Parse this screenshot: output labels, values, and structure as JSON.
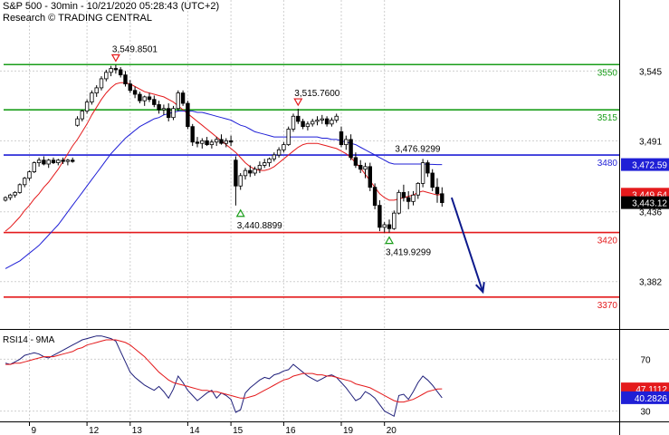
{
  "header": {
    "line1": "S&P 500 - 30min - 10/21/2020 05:28:43 (UTC+2)",
    "line2": "Research © TRADING CENTRAL"
  },
  "colors": {
    "up": "#000000",
    "down": "#000000",
    "ma_fast": "#e41a1c",
    "ma_slow": "#1f1fd6",
    "resistance": "#1a9e1a",
    "pivot": "#1f1fd6",
    "support": "#e41a1c",
    "arrow": "#0d1a8c",
    "rsi": "#1f1f7a",
    "rsi_ma": "#e41a1c"
  },
  "chart_data": [
    {
      "type": "candlestick",
      "title": "S&P 500 - 30min - 10/21/2020 05:28:43 (UTC+2)",
      "x_ticks": [
        "9",
        "12",
        "13",
        "14",
        "15",
        "16",
        "19",
        "20"
      ],
      "y_ticks": [
        3382,
        3436,
        3491,
        3545
      ],
      "y_range": [
        3346,
        3600
      ],
      "grid": true,
      "levels": [
        {
          "value": 3550,
          "label": "3550",
          "role": "resistance"
        },
        {
          "value": 3515,
          "label": "3515",
          "role": "resistance"
        },
        {
          "value": 3480,
          "label": "3480",
          "role": "pivot"
        },
        {
          "value": 3420,
          "label": "3420",
          "role": "support"
        },
        {
          "value": 3370,
          "label": "3370",
          "role": "support"
        }
      ],
      "annotations": [
        {
          "text": "3,549.8501",
          "value": 3549.8501,
          "bar": 23,
          "marker": "down"
        },
        {
          "text": "3,515.7600",
          "value": 3515.76,
          "bar": 61,
          "marker": "down"
        },
        {
          "text": "3,476.9299",
          "value": 3476.9299,
          "bar": 88,
          "marker": "none"
        },
        {
          "text": "3,440.8899",
          "value": 3440.8899,
          "bar": 49,
          "marker": "up"
        },
        {
          "text": "3,419.9299",
          "value": 3419.9299,
          "bar": 80,
          "marker": "up"
        }
      ],
      "badges": [
        {
          "text": "3,472.59",
          "value": 3472.59,
          "series": "ma_slow"
        },
        {
          "text": "3,449.64",
          "value": 3449.64,
          "series": "ma_fast"
        },
        {
          "text": "3,443.12",
          "value": 3443.12,
          "series": "price"
        }
      ],
      "projection": {
        "from_value": 3447,
        "to_value": 3374
      },
      "series": [
        {
          "name": "ma_fast",
          "values": [
            3421,
            3424,
            3428,
            3432,
            3437,
            3441,
            3446,
            3450,
            3455,
            3459,
            3464,
            3469,
            3475,
            3481,
            3487,
            3492,
            3498,
            3504,
            3511,
            3517,
            3523,
            3528,
            3532,
            3535,
            3536,
            3536,
            3535,
            3533,
            3531,
            3529,
            3528,
            3527,
            3526,
            3525,
            3523,
            3521,
            3518,
            3515,
            3512,
            3509,
            3506,
            3503,
            3500,
            3497,
            3494,
            3491,
            3488,
            3485,
            3482,
            3478,
            3474,
            3471,
            3469,
            3468,
            3468,
            3469,
            3471,
            3474,
            3477,
            3480,
            3483,
            3486,
            3488,
            3489,
            3489,
            3489,
            3488,
            3487,
            3486,
            3485,
            3483,
            3481,
            3478,
            3474,
            3470,
            3465,
            3460,
            3455,
            3450,
            3447,
            3445,
            3445,
            3446,
            3447,
            3448,
            3449,
            3451,
            3452,
            3451,
            3450,
            3449,
            3449.64
          ]
        },
        {
          "name": "ma_slow",
          "values": [
            3392,
            3394,
            3396,
            3398,
            3401,
            3404,
            3407,
            3410,
            3414,
            3418,
            3422,
            3426,
            3431,
            3436,
            3441,
            3446,
            3451,
            3456,
            3461,
            3466,
            3471,
            3476,
            3481,
            3485,
            3489,
            3493,
            3496,
            3499,
            3502,
            3504,
            3506,
            3508,
            3509,
            3511,
            3512,
            3513,
            3514,
            3514,
            3514,
            3514,
            3513,
            3513,
            3512,
            3511,
            3510,
            3509,
            3508,
            3507,
            3505,
            3503,
            3502,
            3500,
            3498,
            3497,
            3496,
            3495,
            3494,
            3494,
            3494,
            3494,
            3494,
            3494,
            3494,
            3494,
            3494,
            3494,
            3493,
            3493,
            3492,
            3492,
            3491,
            3490,
            3489,
            3488,
            3486,
            3484,
            3482,
            3480,
            3478,
            3476,
            3474,
            3473,
            3473,
            3473,
            3473,
            3473,
            3473,
            3473,
            3472.8,
            3472.7,
            3472.6,
            3472.59
          ]
        }
      ],
      "candles": [
        [
          3445,
          3448,
          3444,
          3447
        ],
        [
          3447,
          3450,
          3445,
          3449
        ],
        [
          3449,
          3452,
          3447,
          3451
        ],
        [
          3451,
          3458,
          3450,
          3457
        ],
        [
          3457,
          3463,
          3455,
          3462
        ],
        [
          3462,
          3468,
          3460,
          3467
        ],
        [
          3467,
          3475,
          3466,
          3474
        ],
        [
          3474,
          3478,
          3471,
          3476
        ],
        [
          3476,
          3479,
          3472,
          3473
        ],
        [
          3473,
          3477,
          3470,
          3476
        ],
        [
          3476,
          3478,
          3473,
          3474
        ],
        [
          3474,
          3477,
          3472,
          3476
        ],
        [
          3476,
          3478,
          3473,
          3475
        ],
        [
          3475,
          3477,
          3472,
          3476
        ],
        [
          3476,
          3478,
          3474,
          3475
        ],
        [
          3503,
          3510,
          3502,
          3508
        ],
        [
          3508,
          3515,
          3506,
          3514
        ],
        [
          3514,
          3523,
          3512,
          3521
        ],
        [
          3521,
          3530,
          3519,
          3528
        ],
        [
          3528,
          3534,
          3525,
          3532
        ],
        [
          3532,
          3541,
          3530,
          3539
        ],
        [
          3539,
          3546,
          3537,
          3544
        ],
        [
          3544,
          3549,
          3541,
          3547
        ],
        [
          3547,
          3549.85,
          3543,
          3546
        ],
        [
          3546,
          3548,
          3540,
          3542
        ],
        [
          3542,
          3545,
          3533,
          3535
        ],
        [
          3535,
          3538,
          3528,
          3530
        ],
        [
          3530,
          3533,
          3524,
          3527
        ],
        [
          3527,
          3529,
          3520,
          3522
        ],
        [
          3522,
          3526,
          3518,
          3525
        ],
        [
          3525,
          3528,
          3521,
          3523
        ],
        [
          3523,
          3526,
          3517,
          3519
        ],
        [
          3519,
          3522,
          3512,
          3515
        ],
        [
          3515,
          3519,
          3511,
          3516
        ],
        [
          3516,
          3520,
          3506,
          3509
        ],
        [
          3509,
          3518,
          3507,
          3516
        ],
        [
          3516,
          3530,
          3514,
          3528
        ],
        [
          3528,
          3530,
          3518,
          3520
        ],
        [
          3520,
          3522,
          3500,
          3502
        ],
        [
          3502,
          3504,
          3487,
          3490
        ],
        [
          3490,
          3494,
          3486,
          3489
        ],
        [
          3489,
          3493,
          3485,
          3491
        ],
        [
          3491,
          3494,
          3487,
          3488
        ],
        [
          3488,
          3492,
          3485,
          3490
        ],
        [
          3490,
          3494,
          3487,
          3492
        ],
        [
          3492,
          3496,
          3488,
          3489
        ],
        [
          3489,
          3493,
          3486,
          3491
        ],
        [
          3491,
          3495,
          3487,
          3490
        ],
        [
          3476,
          3479,
          3440.89,
          3456
        ],
        [
          3456,
          3466,
          3453,
          3464
        ],
        [
          3464,
          3470,
          3461,
          3468
        ],
        [
          3468,
          3472,
          3463,
          3466
        ],
        [
          3466,
          3471,
          3464,
          3469
        ],
        [
          3469,
          3475,
          3466,
          3472
        ],
        [
          3472,
          3477,
          3470,
          3474
        ],
        [
          3474,
          3478,
          3471,
          3477
        ],
        [
          3477,
          3482,
          3475,
          3480
        ],
        [
          3480,
          3486,
          3478,
          3484
        ],
        [
          3484,
          3490,
          3482,
          3488
        ],
        [
          3488,
          3502,
          3487,
          3500
        ],
        [
          3500,
          3512,
          3498,
          3510
        ],
        [
          3510,
          3515.76,
          3504,
          3506
        ],
        [
          3506,
          3508,
          3500,
          3502
        ],
        [
          3502,
          3506,
          3499,
          3504
        ],
        [
          3504,
          3508,
          3502,
          3506
        ],
        [
          3506,
          3510,
          3503,
          3507
        ],
        [
          3507,
          3511,
          3504,
          3508
        ],
        [
          3508,
          3510,
          3502,
          3504
        ],
        [
          3504,
          3509,
          3502,
          3507
        ],
        [
          3507,
          3512,
          3505,
          3510
        ],
        [
          3498,
          3502,
          3486,
          3488
        ],
        [
          3488,
          3495,
          3484,
          3492
        ],
        [
          3492,
          3496,
          3476,
          3478
        ],
        [
          3478,
          3482,
          3470,
          3472
        ],
        [
          3472,
          3476,
          3466,
          3469
        ],
        [
          3469,
          3474,
          3462,
          3471
        ],
        [
          3471,
          3474,
          3452,
          3455
        ],
        [
          3455,
          3458,
          3438,
          3441
        ],
        [
          3441,
          3445,
          3421,
          3424
        ],
        [
          3424,
          3428,
          3420,
          3426
        ],
        [
          3426,
          3430,
          3419.93,
          3423
        ],
        [
          3423,
          3437,
          3422,
          3435
        ],
        [
          3435,
          3453,
          3434,
          3451
        ],
        [
          3451,
          3457,
          3444,
          3447
        ],
        [
          3447,
          3452,
          3438,
          3444
        ],
        [
          3444,
          3452,
          3441,
          3449
        ],
        [
          3449,
          3459,
          3446,
          3458
        ],
        [
          3458,
          3476.93,
          3455,
          3474
        ],
        [
          3474,
          3476,
          3463,
          3466
        ],
        [
          3466,
          3469,
          3452,
          3455
        ],
        [
          3455,
          3462,
          3443,
          3450
        ],
        [
          3450,
          3455,
          3440,
          3443.12
        ]
      ]
    },
    {
      "type": "line",
      "title": "RSI14 - 9MA",
      "y_ticks": [
        30,
        70
      ],
      "y_range": [
        22,
        92
      ],
      "badges": [
        {
          "text": "47.1112",
          "value": 47.1112,
          "series": "rsi_ma"
        },
        {
          "text": "40.2826",
          "value": 40.2826,
          "series": "rsi"
        }
      ],
      "series": [
        {
          "name": "rsi",
          "values": [
            67,
            66,
            68,
            70,
            73,
            74,
            75,
            74,
            72,
            71,
            73,
            75,
            77,
            79,
            81,
            83,
            85,
            86,
            87,
            88,
            88,
            87,
            86,
            84,
            76,
            68,
            60,
            56,
            53,
            50,
            48,
            46,
            49,
            45,
            40,
            47,
            57,
            52,
            46,
            42,
            38,
            41,
            44,
            46,
            40,
            44,
            42,
            39,
            29,
            31,
            44,
            48,
            51,
            54,
            56,
            55,
            58,
            59,
            61,
            62,
            66,
            63,
            60,
            57,
            55,
            53,
            55,
            57,
            58,
            56,
            52,
            48,
            43,
            38,
            40,
            45,
            43,
            40,
            35,
            30,
            28,
            26,
            42,
            43,
            39,
            45,
            52,
            57,
            54,
            50,
            45,
            40.28
          ]
        },
        {
          "name": "rsi_ma",
          "values": [
            66,
            66,
            67,
            67,
            68,
            69,
            70,
            71,
            72,
            72,
            72,
            73,
            74,
            75,
            76,
            78,
            79,
            81,
            82,
            83,
            84,
            85,
            85,
            85,
            84,
            83,
            81,
            78,
            75,
            72,
            68,
            64,
            60,
            57,
            54,
            52,
            51,
            50,
            49,
            48,
            47,
            46,
            46,
            45,
            45,
            44,
            43,
            42,
            41,
            40,
            40,
            41,
            42,
            44,
            46,
            48,
            50,
            52,
            54,
            55,
            57,
            58,
            59,
            59,
            59,
            58,
            58,
            57,
            57,
            56,
            55,
            54,
            53,
            51,
            50,
            49,
            48,
            46,
            44,
            42,
            40,
            38,
            37,
            37,
            38,
            39,
            41,
            43,
            45,
            46,
            47,
            47.11
          ]
        }
      ]
    }
  ]
}
